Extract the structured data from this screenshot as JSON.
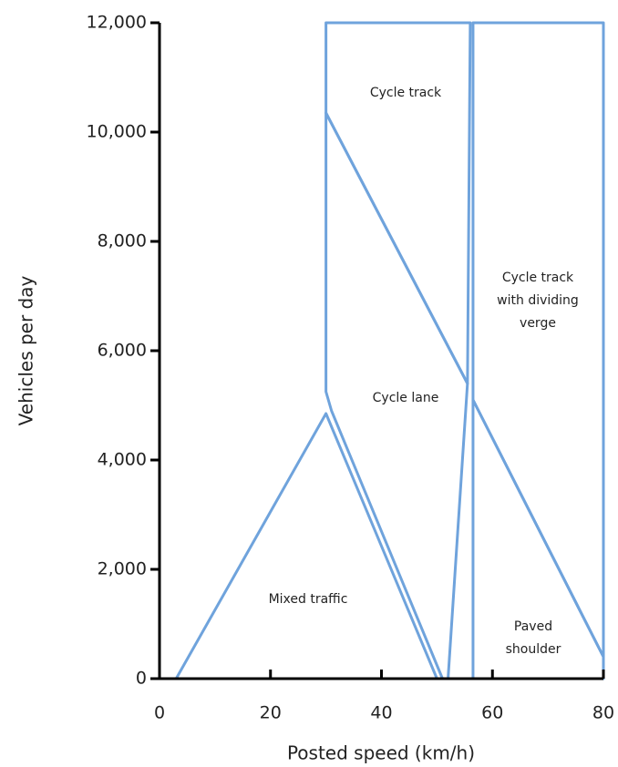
{
  "chart_data": {
    "type": "region",
    "xlabel": "Posted speed (km/h)",
    "ylabel": "Vehicles per day",
    "xlim": [
      0,
      80
    ],
    "ylim": [
      0,
      12000
    ],
    "xticks": [
      0,
      20,
      40,
      60,
      80
    ],
    "yticks": [
      0,
      {
        "value": 2000,
        "label": "2,000"
      },
      {
        "value": 4000,
        "label": "4,000"
      },
      {
        "value": 6000,
        "label": "6,000"
      },
      {
        "value": 8000,
        "label": "8,000"
      },
      {
        "value": 10000,
        "label": "10,000"
      },
      {
        "value": 12000,
        "label": "12,000"
      }
    ],
    "color": "#6fa3dc",
    "regions": [
      {
        "label": [
          "Mixed traffic"
        ],
        "x": [
          3,
          30,
          50
        ],
        "y": [
          0,
          4850,
          0
        ]
      },
      {
        "label": [
          "Cycle lane"
        ],
        "x": [
          30,
          55.5,
          52,
          51,
          31,
          30
        ],
        "y": [
          10350,
          5400,
          0,
          0,
          4900,
          5250
        ]
      },
      {
        "label": [
          "Cycle track"
        ],
        "x": [
          30,
          30,
          56,
          55.5
        ],
        "y": [
          10350,
          12000,
          12000,
          5400
        ]
      },
      {
        "label": [
          "Cycle track",
          "with dividing",
          "verge"
        ],
        "x": [
          56.5,
          56.5,
          80,
          80
        ],
        "y": [
          5100,
          12000,
          12000,
          400
        ]
      },
      {
        "label": [
          "Paved",
          "shoulder"
        ],
        "x": [
          56.5,
          80,
          80,
          56.5
        ],
        "y": [
          5100,
          400,
          0,
          0
        ]
      }
    ]
  }
}
